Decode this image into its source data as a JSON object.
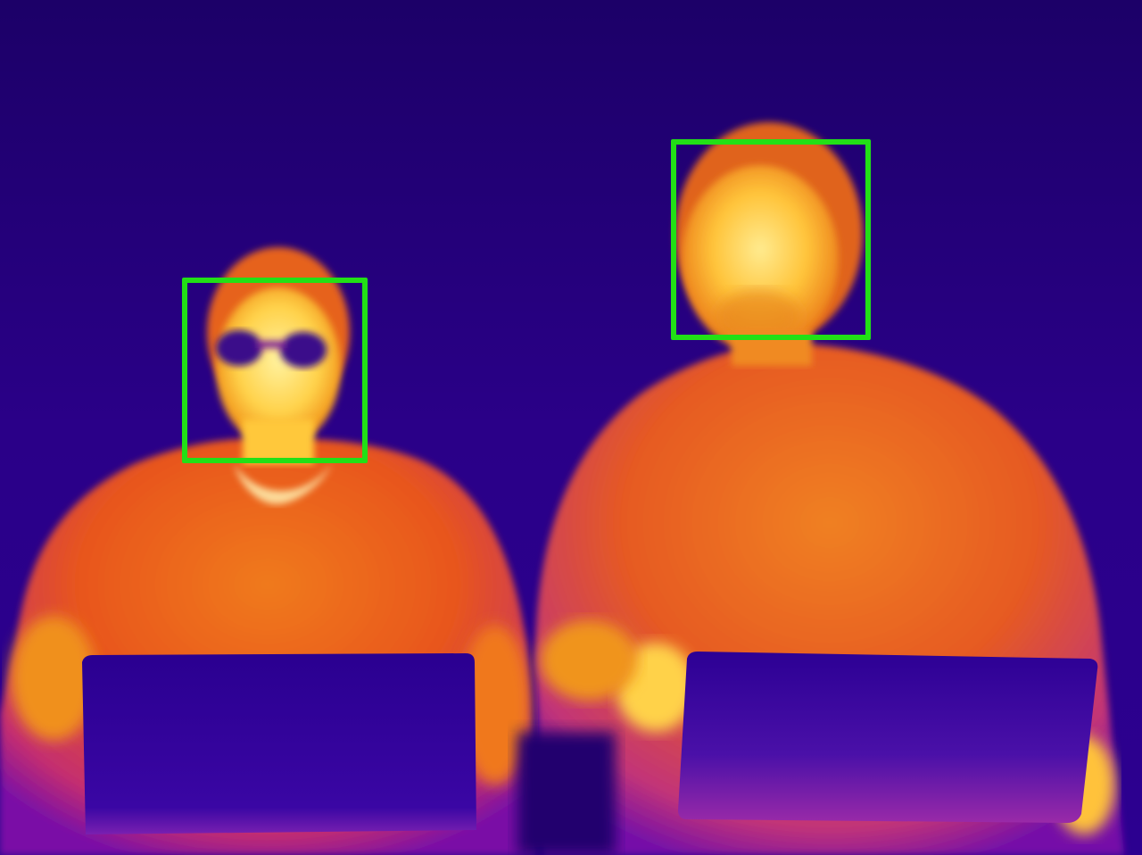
{
  "image": {
    "kind": "thermal-camera-frame",
    "palette": [
      "#1a0070",
      "#3a0aa0",
      "#8a10a8",
      "#d0306a",
      "#f06a1c",
      "#ffb21a",
      "#fff08a"
    ]
  },
  "detections": [
    {
      "label": "",
      "color": "#22e016"
    },
    {
      "label": "",
      "color": "#22e016"
    }
  ]
}
